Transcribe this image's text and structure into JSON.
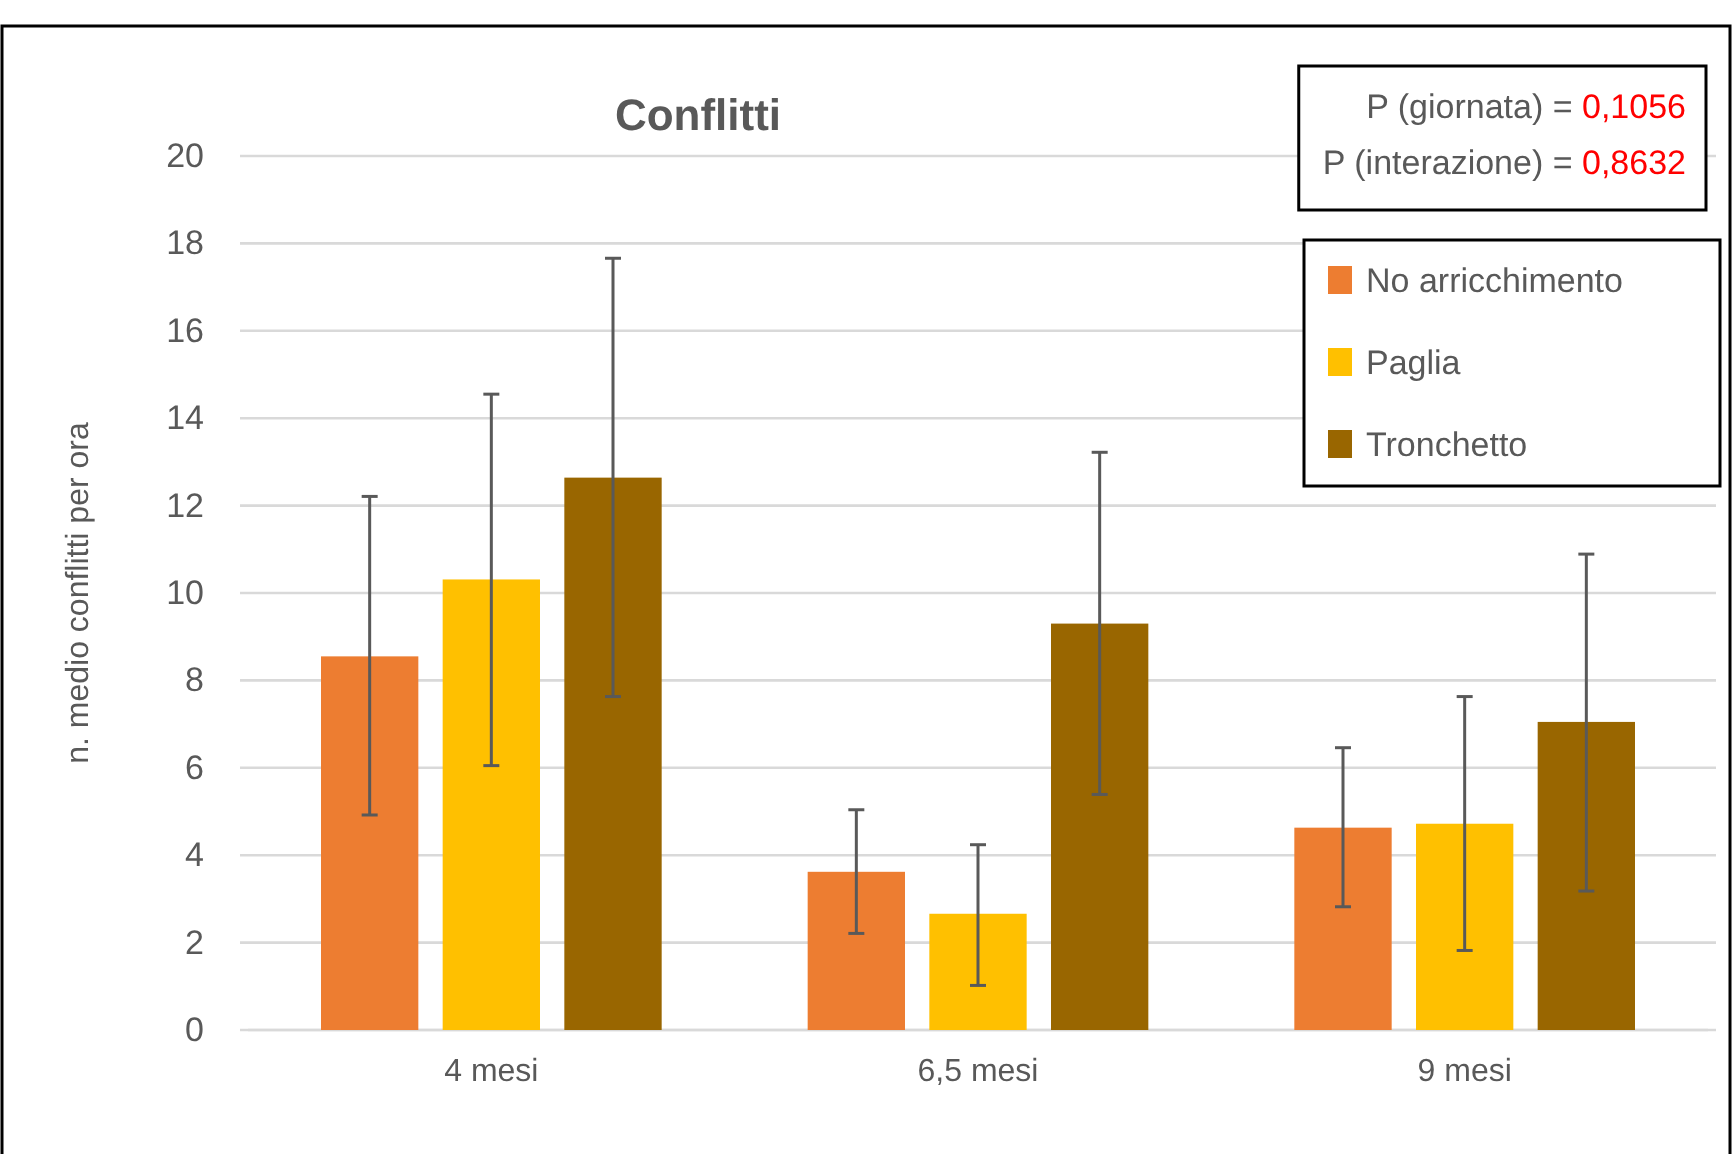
{
  "chart_data": {
    "type": "bar",
    "title": "Conflitti",
    "ylabel": "n. medio conflitti per ora",
    "categories": [
      "4 mesi",
      "6,5 mesi",
      "9 mesi"
    ],
    "series": [
      {
        "name": "No arricchimento",
        "color": "#ed7d31",
        "values": [
          8.55,
          3.62,
          4.63
        ],
        "errors": [
          [
            4.92,
            12.21
          ],
          [
            2.21,
            5.04
          ],
          [
            2.82,
            6.46
          ]
        ]
      },
      {
        "name": "Paglia",
        "color": "#ffc000",
        "values": [
          10.31,
          2.66,
          4.72
        ],
        "errors": [
          [
            6.05,
            14.55
          ],
          [
            1.02,
            4.24
          ],
          [
            1.82,
            7.63
          ]
        ]
      },
      {
        "name": "Tronchetto",
        "color": "#996600",
        "values": [
          12.64,
          9.3,
          7.05
        ],
        "errors": [
          [
            7.63,
            17.66
          ],
          [
            5.39,
            13.22
          ],
          [
            3.18,
            10.89
          ]
        ]
      }
    ],
    "ylim": [
      0,
      20
    ],
    "yticks": [
      0,
      2,
      4,
      6,
      8,
      10,
      12,
      14,
      16,
      18,
      20
    ],
    "grid": "y",
    "legend": "top right",
    "annotations": [
      "P (giornata) = 0,1056",
      "P (interazione) = 0,8632"
    ]
  }
}
